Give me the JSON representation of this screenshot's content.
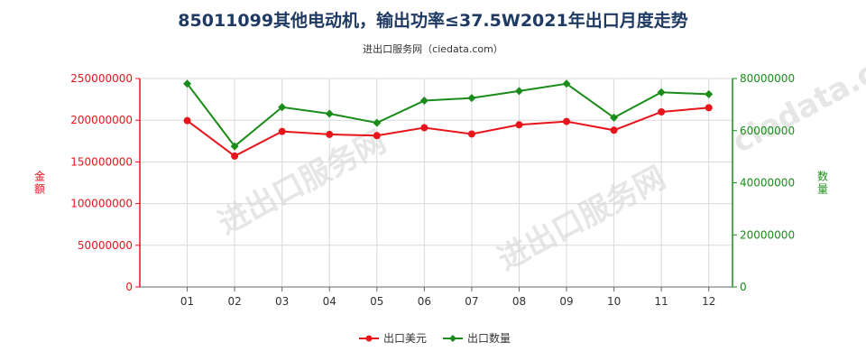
{
  "chart_data": {
    "type": "line",
    "title": "85011099其他电动机，输出功率≤37.5W2021年出口月度走势",
    "subtitle": "进出口服务网（ciedata.com）",
    "categories": [
      "01",
      "02",
      "03",
      "04",
      "05",
      "06",
      "07",
      "08",
      "09",
      "10",
      "11",
      "12"
    ],
    "series": [
      {
        "name": "出口美元",
        "axis": "left",
        "color": "#e8141b",
        "values": [
          199500000,
          157000000,
          186500000,
          183000000,
          181500000,
          191000000,
          183500000,
          194500000,
          198500000,
          188000000,
          210000000,
          215000000
        ]
      },
      {
        "name": "出口数量",
        "axis": "right",
        "color": "#1a8c1a",
        "values": [
          78000000,
          54000000,
          69000000,
          66500000,
          63000000,
          71500000,
          72500000,
          75200000,
          78000000,
          65000000,
          74700000,
          74000000
        ]
      }
    ],
    "ylabel_left": "金额",
    "ylabel_right": "数量",
    "ylim_left": [
      0,
      250000000
    ],
    "ylim_right": [
      0,
      80000000
    ],
    "yticks_left": [
      "0",
      "50000000",
      "100000000",
      "150000000",
      "200000000",
      "250000000"
    ],
    "yticks_right": [
      "0",
      "20000000",
      "40000000",
      "60000000",
      "80000000"
    ],
    "grid": true,
    "legend": "bottom-center",
    "left_axis_color": "#e8141b",
    "right_axis_color": "#1a8c1a"
  }
}
